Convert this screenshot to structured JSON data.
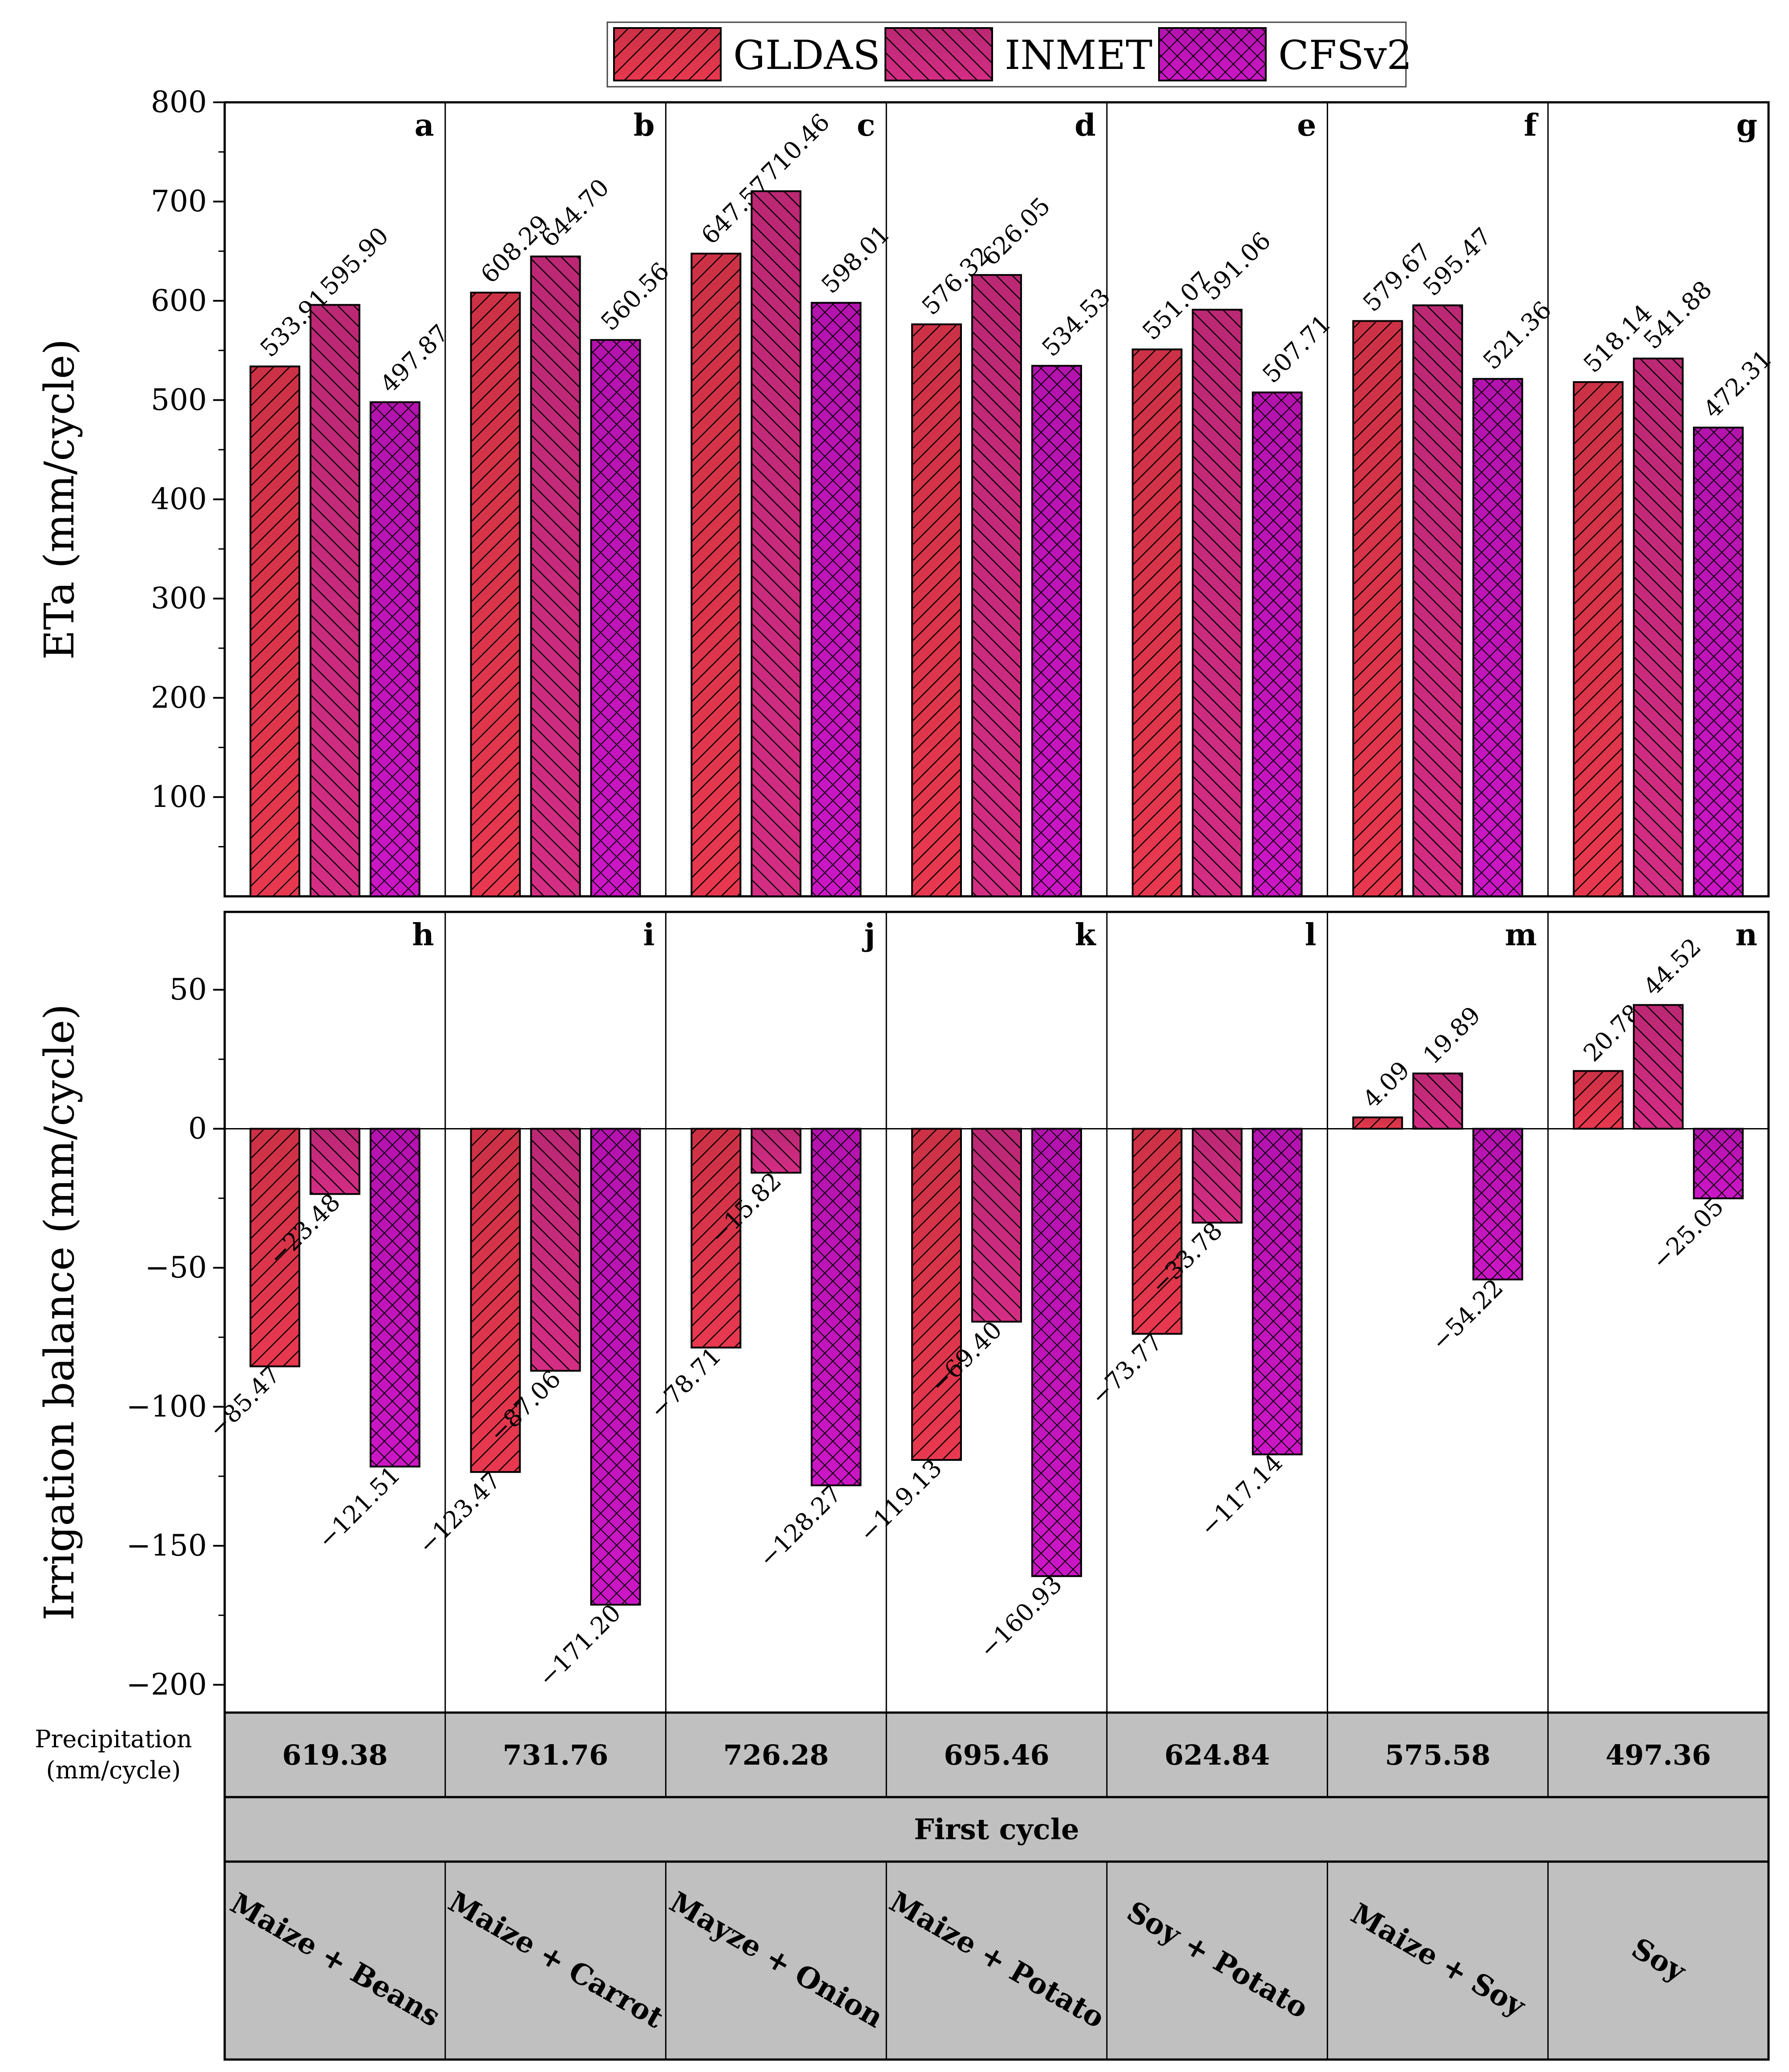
{
  "chart_data": {
    "type": "bar",
    "legend": {
      "placement": "top-center",
      "entries": [
        {
          "name": "GLDAS",
          "color": "#e8384f",
          "pattern": "diagonal-right"
        },
        {
          "name": "INMET",
          "color": "#d42d84",
          "pattern": "diagonal-left"
        },
        {
          "name": "CFSv2",
          "color": "#cc16c6",
          "pattern": "crosshatch"
        }
      ]
    },
    "top": {
      "ylabel": "ETa (mm/cycle)",
      "ylim": [
        0,
        800
      ],
      "yticks": [
        100,
        200,
        300,
        400,
        500,
        600,
        700,
        800
      ],
      "panel_letters": [
        "a",
        "b",
        "c",
        "d",
        "e",
        "f",
        "g"
      ],
      "series": [
        {
          "name": "GLDAS",
          "values": [
            533.91,
            608.29,
            647.57,
            576.32,
            551.07,
            579.67,
            518.14
          ],
          "labels": [
            "533.91",
            "608.29",
            "647.57",
            "576.32",
            "551.07",
            "579.67",
            "518.14"
          ]
        },
        {
          "name": "INMET",
          "values": [
            595.9,
            644.7,
            710.46,
            626.05,
            591.06,
            595.47,
            541.88
          ],
          "labels": [
            "595.90",
            "644.70",
            "710.46",
            "626.05",
            "591.06",
            "595.47",
            "541.88"
          ]
        },
        {
          "name": "CFSv2",
          "values": [
            497.87,
            560.56,
            598.01,
            534.53,
            507.71,
            521.36,
            472.31
          ],
          "labels": [
            "497.87",
            "560.56",
            "598.01",
            "534.53",
            "507.71",
            "521.36",
            "472.31"
          ]
        }
      ]
    },
    "bottom": {
      "ylabel": "Irrigation balance (mm/cycle)",
      "ylim": [
        -210,
        78
      ],
      "yticks": [
        50,
        0,
        -50,
        -100,
        -150,
        -200
      ],
      "ytick_labels": [
        "50",
        "0",
        "−50",
        "−100",
        "−150",
        "−200"
      ],
      "panel_letters": [
        "h",
        "i",
        "j",
        "k",
        "l",
        "m",
        "n"
      ],
      "series": [
        {
          "name": "GLDAS",
          "values": [
            -85.47,
            -123.47,
            -78.71,
            -119.13,
            -73.77,
            4.09,
            20.78
          ],
          "labels": [
            "−85.47",
            "−123.47",
            "−78.71",
            "−119.13",
            "−73.77",
            "4.09",
            "20.78"
          ]
        },
        {
          "name": "INMET",
          "values": [
            -23.48,
            -87.06,
            -15.82,
            -69.4,
            -33.78,
            19.89,
            44.52
          ],
          "labels": [
            "−23.48",
            "−87.06",
            "−15.82",
            "−69.40",
            "−33.78",
            "19.89",
            "44.52"
          ]
        },
        {
          "name": "CFSv2",
          "values": [
            -121.51,
            -171.2,
            -128.27,
            -160.93,
            -117.14,
            -54.22,
            -25.05
          ],
          "labels": [
            "−121.51",
            "−171.20",
            "−128.27",
            "−160.93",
            "−117.14",
            "−54.22",
            "−25.05"
          ]
        }
      ]
    },
    "precipitation": {
      "label_line1": "Precipitation",
      "label_line2": "(mm/cycle)",
      "values": [
        "619.38",
        "731.76",
        "726.28",
        "695.46",
        "624.84",
        "575.58",
        "497.36"
      ]
    },
    "cycle_label": "First cycle",
    "categories": [
      "Maize + Beans",
      "Maize + Carrot",
      "Mayze + Onion",
      "Maize + Potato",
      "Soy + Potato",
      "Maize + Soy",
      "Soy"
    ],
    "grid": false
  }
}
